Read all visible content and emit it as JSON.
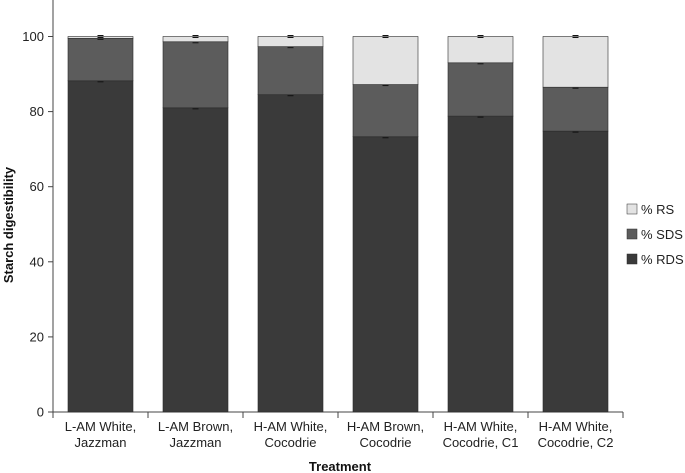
{
  "chart_data": {
    "type": "bar",
    "stacked": true,
    "title": "",
    "xlabel": "Treatment",
    "ylabel": "Starch digestibility",
    "ylim": [
      0,
      110
    ],
    "yticks": [
      0,
      20,
      40,
      60,
      80,
      100
    ],
    "grid": false,
    "legend_position": "right",
    "categories": [
      [
        "L-AM White,",
        "Jazzman"
      ],
      [
        "L-AM Brown,",
        "Jazzman"
      ],
      [
        "H-AM White,",
        "Cocodrie"
      ],
      [
        "H-AM Brown,",
        "Cocodrie"
      ],
      [
        "H-AM White,",
        "Cocodrie, C1"
      ],
      [
        "H-AM White,",
        "Cocodrie, C2"
      ]
    ],
    "series": [
      {
        "name": "% RDS",
        "color": "#3a3a3a",
        "values": [
          88.2,
          81.0,
          84.5,
          73.3,
          78.8,
          74.8
        ]
      },
      {
        "name": "% SDS",
        "color": "#5c5c5c",
        "values": [
          11.3,
          17.6,
          12.8,
          13.9,
          14.2,
          11.7
        ]
      },
      {
        "name": "% RS",
        "color": "#e3e3e3",
        "values": [
          0.5,
          1.4,
          2.7,
          12.8,
          7.0,
          13.5
        ]
      }
    ],
    "legend_order": [
      "% RS",
      "% SDS",
      "% RDS"
    ]
  }
}
